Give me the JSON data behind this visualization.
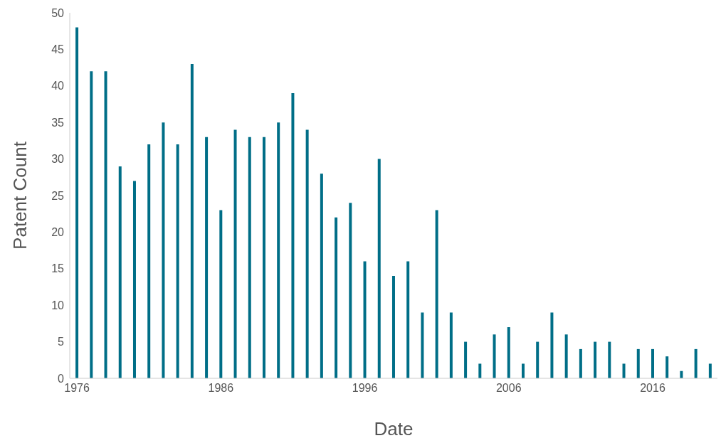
{
  "chart_data": {
    "type": "bar",
    "xlabel": "Date",
    "ylabel": "Patent Count",
    "categories": [
      "1976",
      null,
      null,
      null,
      null,
      null,
      null,
      null,
      null,
      null,
      "1986",
      null,
      null,
      null,
      null,
      null,
      null,
      null,
      null,
      null,
      "1996",
      null,
      null,
      null,
      null,
      null,
      null,
      null,
      null,
      null,
      "2006",
      null,
      null,
      null,
      null,
      null,
      null,
      null,
      null,
      null,
      "2016",
      null,
      null,
      null,
      null
    ],
    "values": [
      48,
      42,
      42,
      29,
      27,
      32,
      35,
      32,
      43,
      33,
      23,
      34,
      33,
      33,
      35,
      39,
      34,
      28,
      22,
      24,
      16,
      30,
      14,
      16,
      9,
      23,
      9,
      5,
      2,
      6,
      7,
      2,
      5,
      9,
      6,
      4,
      5,
      5,
      2,
      4,
      4,
      3,
      1,
      4,
      2
    ],
    "color": "#006e87",
    "ylim": [
      0,
      50
    ],
    "yticks": [
      0,
      5,
      10,
      15,
      20,
      25,
      30,
      35,
      40,
      45,
      50
    ],
    "grid": false
  }
}
